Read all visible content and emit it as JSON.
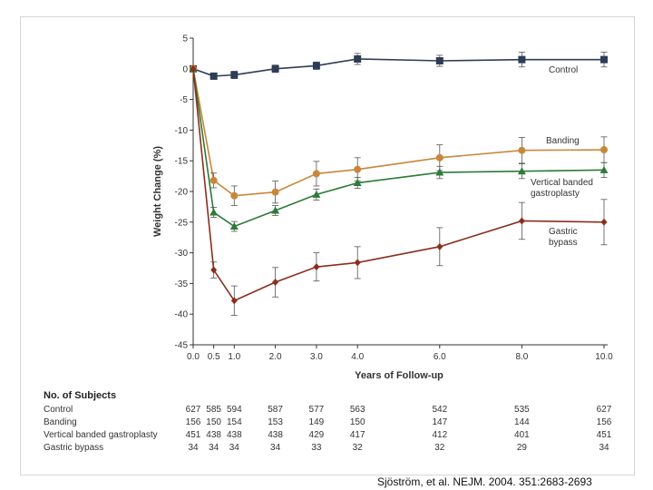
{
  "chart_data": {
    "type": "line",
    "xlabel": "Years of Follow-up",
    "ylabel": "Weight Change (%)",
    "x": [
      0.0,
      0.5,
      1.0,
      2.0,
      3.0,
      4.0,
      6.0,
      8.0,
      10.0
    ],
    "x_tick_labels": [
      "0.0",
      "0.5",
      "1.0",
      "2.0",
      "3.0",
      "4.0",
      "6.0",
      "8.0",
      "10.0"
    ],
    "y_ticks": [
      5,
      0,
      -5,
      -10,
      -15,
      -20,
      -25,
      -30,
      -35,
      -40,
      -45
    ],
    "xlim": [
      0,
      10
    ],
    "ylim": [
      -45,
      5
    ],
    "series": [
      {
        "name": "Control",
        "color": "#2e3d55",
        "marker": "square",
        "values": [
          0,
          -1.2,
          -1.0,
          0.0,
          0.5,
          1.6,
          1.3,
          1.5,
          1.5
        ],
        "err": [
          0,
          0.5,
          0.6,
          0.6,
          0.6,
          0.9,
          0.9,
          1.2,
          1.2
        ]
      },
      {
        "name": "Banding",
        "color": "#c9863a",
        "marker": "circle",
        "values": [
          0,
          -18.2,
          -20.7,
          -20.1,
          -17.1,
          -16.4,
          -14.5,
          -13.3,
          -13.2
        ],
        "err": [
          0,
          1.2,
          1.6,
          1.8,
          2.0,
          1.9,
          2.1,
          2.1,
          2.1
        ]
      },
      {
        "name": "Vertical banded gastroplasty",
        "label_lines": [
          "Vertical banded",
          "gastroplasty"
        ],
        "color": "#2e7a3a",
        "marker": "triangle",
        "values": [
          0,
          -23.4,
          -25.7,
          -23.1,
          -20.5,
          -18.6,
          -16.9,
          -16.7,
          -16.5
        ],
        "err": [
          0,
          0.8,
          0.8,
          0.8,
          0.9,
          0.9,
          1.0,
          1.2,
          1.2
        ]
      },
      {
        "name": "Gastric bypass",
        "label_lines": [
          "Gastric",
          "bypass"
        ],
        "color": "#8a2f1c",
        "marker": "diamond",
        "values": [
          0,
          -32.8,
          -37.8,
          -34.8,
          -32.3,
          -31.6,
          -29.0,
          -24.8,
          -25.0
        ],
        "err": [
          0,
          1.3,
          2.4,
          2.4,
          2.3,
          2.6,
          3.1,
          3.0,
          3.7
        ]
      }
    ]
  },
  "subjects_table": {
    "title": "No. of Subjects",
    "rows": [
      {
        "label": "Control",
        "counts": [
          "627",
          "585",
          "594",
          "587",
          "577",
          "563",
          "542",
          "535",
          "627"
        ]
      },
      {
        "label": "Banding",
        "counts": [
          "156",
          "150",
          "154",
          "153",
          "149",
          "150",
          "147",
          "144",
          "156"
        ]
      },
      {
        "label": "Vertical banded gastroplasty",
        "counts": [
          "451",
          "438",
          "438",
          "438",
          "429",
          "417",
          "412",
          "401",
          "451"
        ]
      },
      {
        "label": "Gastric bypass",
        "counts": [
          "34",
          "34",
          "34",
          "34",
          "33",
          "32",
          "32",
          "29",
          "34"
        ]
      }
    ]
  },
  "citation": "Sjöström, et al. NEJM. 2004. 351:2683-2693"
}
